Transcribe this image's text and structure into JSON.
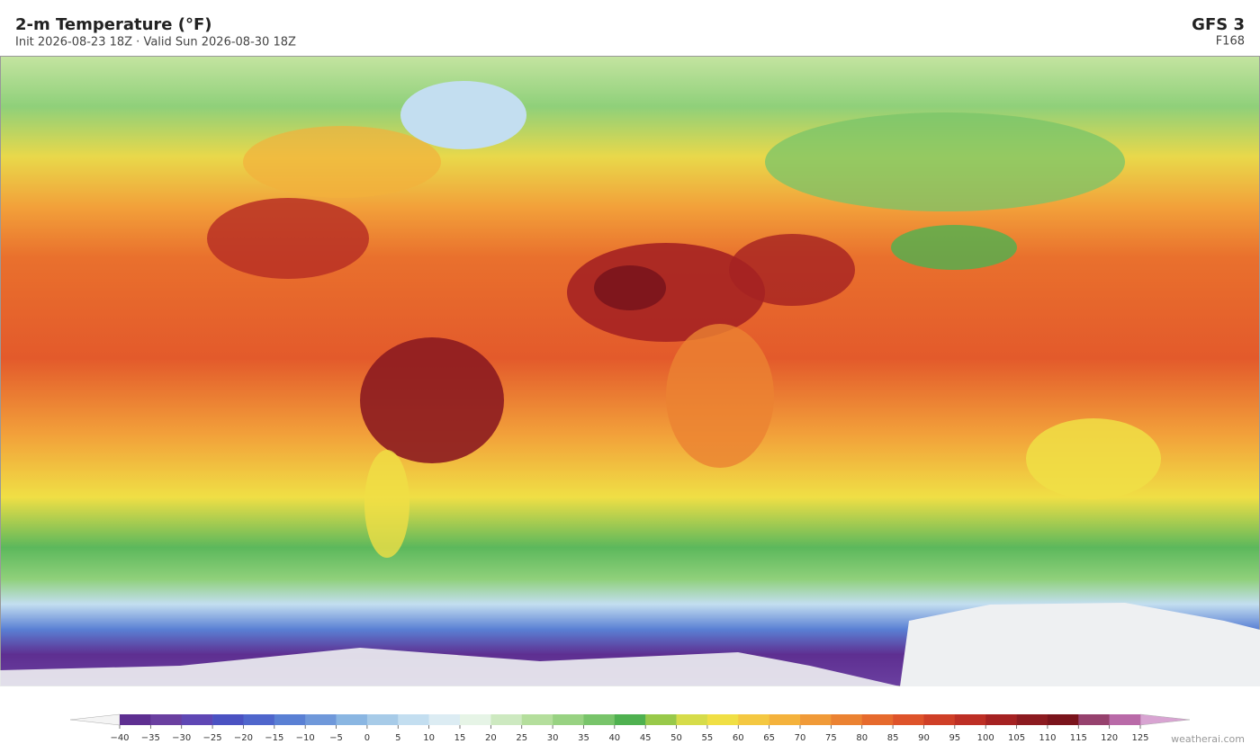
{
  "header": {
    "title": "2-m Temperature  (°F)",
    "subtitle": "Init 2026-08-23 18Z   ·   Valid Sun 2026-08-30 18Z",
    "model": "GFS  3",
    "forecast_hour": "F168"
  },
  "colorbar": {
    "ticks": [
      {
        "value": -40,
        "label": "−40"
      },
      {
        "value": -35,
        "label": "−35"
      },
      {
        "value": -30,
        "label": "−30"
      },
      {
        "value": -25,
        "label": "−25"
      },
      {
        "value": -20,
        "label": "−20"
      },
      {
        "value": -15,
        "label": "−15"
      },
      {
        "value": -10,
        "label": "−10"
      },
      {
        "value": -5,
        "label": "−5"
      },
      0,
      5,
      10,
      15,
      20,
      25,
      30,
      35,
      40,
      45,
      50,
      55,
      60,
      65,
      70,
      75,
      80,
      85,
      90,
      95,
      100,
      105,
      110,
      115,
      120,
      125
    ],
    "colors": [
      "#5e2f91",
      "#6a3fa0",
      "#5f47b4",
      "#4b52c2",
      "#4f66cc",
      "#5a80d4",
      "#6f98da",
      "#8ab6e2",
      "#a7cbe8",
      "#c3def0",
      "#dcecf3",
      "#e6f4e6",
      "#cde9c0",
      "#b4de9c",
      "#98d282",
      "#78c46a",
      "#4fb150",
      "#98c94a",
      "#d6dc4a",
      "#f0df45",
      "#f4c842",
      "#f4b23c",
      "#f09a38",
      "#eb8232",
      "#e66a2d",
      "#de532a",
      "#cf3f27",
      "#bd2f25",
      "#a52222",
      "#8c1b20",
      "#7a141c",
      "#96426e",
      "#b96aa8",
      "#d39ccb"
    ],
    "under_color": "#f4f4f4",
    "over_color": "#d8a4d2"
  },
  "watermark": "weatherai.com"
}
